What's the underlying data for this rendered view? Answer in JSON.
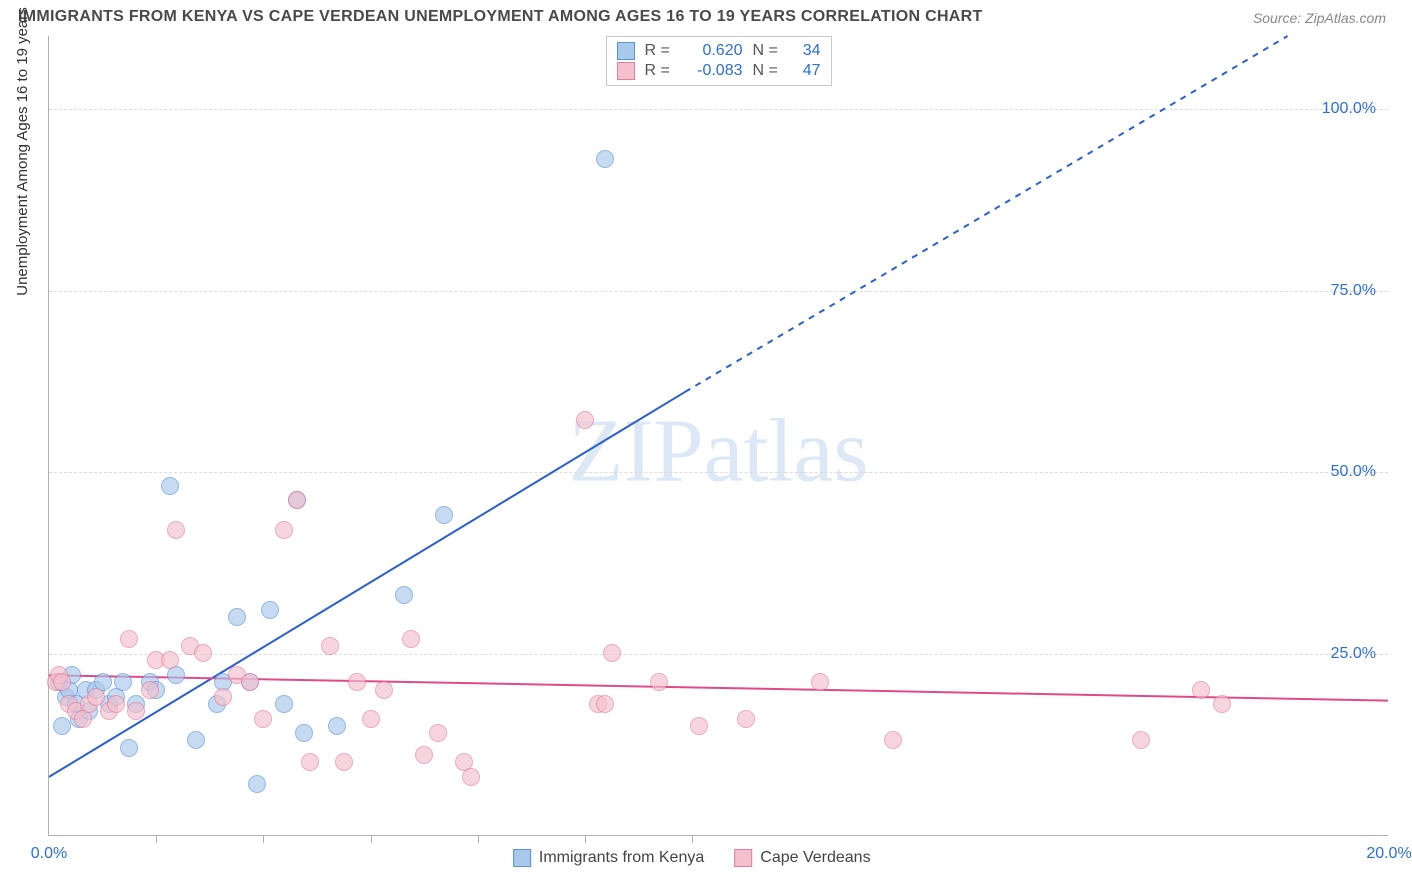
{
  "title": "IMMIGRANTS FROM KENYA VS CAPE VERDEAN UNEMPLOYMENT AMONG AGES 16 TO 19 YEARS CORRELATION CHART",
  "source": "Source: ZipAtlas.com",
  "watermark": "ZIPatlas",
  "chart": {
    "type": "scatter",
    "xlim": [
      0,
      20
    ],
    "ylim": [
      0,
      110
    ],
    "xticks": [
      0,
      20
    ],
    "xtick_labels": [
      "0.0%",
      "20.0%"
    ],
    "yticks": [
      25,
      50,
      75,
      100
    ],
    "ytick_labels": [
      "25.0%",
      "50.0%",
      "75.0%",
      "100.0%"
    ],
    "minor_vticks": [
      1.6,
      3.2,
      4.8,
      6.4,
      8.0,
      9.6
    ],
    "ylabel": "Unemployment Among Ages 16 to 19 years",
    "background_color": "#ffffff",
    "grid_color": "#dcdcdc",
    "point_radius": 9,
    "series": [
      {
        "name": "Immigrants from Kenya",
        "fill": "#a8c8ec",
        "stroke": "#5893d4",
        "fill_opacity": 0.65,
        "R": "0.620",
        "N": "34",
        "trend": {
          "x1": 0,
          "y1": 8,
          "x2": 9.5,
          "y2": 61,
          "x2_ext": 18.5,
          "y2_ext": 110,
          "color": "#2a5fd0",
          "width": 2
        },
        "points": [
          [
            0.15,
            21
          ],
          [
            0.2,
            15
          ],
          [
            0.25,
            19
          ],
          [
            0.3,
            20
          ],
          [
            0.35,
            22
          ],
          [
            0.4,
            18
          ],
          [
            0.45,
            16
          ],
          [
            0.55,
            20
          ],
          [
            0.6,
            17
          ],
          [
            0.7,
            20
          ],
          [
            0.8,
            21
          ],
          [
            0.9,
            18
          ],
          [
            1.0,
            19
          ],
          [
            1.1,
            21
          ],
          [
            1.2,
            12
          ],
          [
            1.3,
            18
          ],
          [
            1.5,
            21
          ],
          [
            1.6,
            20
          ],
          [
            1.8,
            48
          ],
          [
            1.9,
            22
          ],
          [
            2.2,
            13
          ],
          [
            2.5,
            18
          ],
          [
            2.6,
            21
          ],
          [
            2.8,
            30
          ],
          [
            3.0,
            21
          ],
          [
            3.1,
            7
          ],
          [
            3.3,
            31
          ],
          [
            3.5,
            18
          ],
          [
            3.7,
            46
          ],
          [
            3.8,
            14
          ],
          [
            4.3,
            15
          ],
          [
            5.3,
            33
          ],
          [
            5.9,
            44
          ],
          [
            8.3,
            93
          ]
        ]
      },
      {
        "name": "Cape Verdeans",
        "fill": "#f4c0cd",
        "stroke": "#e77ba0",
        "fill_opacity": 0.65,
        "R": "-0.083",
        "N": "47",
        "trend": {
          "x1": 0,
          "y1": 22,
          "x2": 20,
          "y2": 18.5,
          "color": "#e04a88",
          "width": 2
        },
        "points": [
          [
            0.1,
            21
          ],
          [
            0.15,
            22
          ],
          [
            0.2,
            21
          ],
          [
            0.3,
            18
          ],
          [
            0.4,
            17
          ],
          [
            0.5,
            16
          ],
          [
            0.6,
            18
          ],
          [
            0.7,
            19
          ],
          [
            0.9,
            17
          ],
          [
            1.0,
            18
          ],
          [
            1.2,
            27
          ],
          [
            1.3,
            17
          ],
          [
            1.5,
            20
          ],
          [
            1.6,
            24
          ],
          [
            1.8,
            24
          ],
          [
            1.9,
            42
          ],
          [
            2.1,
            26
          ],
          [
            2.3,
            25
          ],
          [
            2.6,
            19
          ],
          [
            2.8,
            22
          ],
          [
            3.0,
            21
          ],
          [
            3.2,
            16
          ],
          [
            3.5,
            42
          ],
          [
            3.7,
            46
          ],
          [
            3.9,
            10
          ],
          [
            4.2,
            26
          ],
          [
            4.4,
            10
          ],
          [
            4.6,
            21
          ],
          [
            4.8,
            16
          ],
          [
            5.0,
            20
          ],
          [
            5.4,
            27
          ],
          [
            5.6,
            11
          ],
          [
            5.8,
            14
          ],
          [
            6.2,
            10
          ],
          [
            6.3,
            8
          ],
          [
            8.0,
            57
          ],
          [
            8.2,
            18
          ],
          [
            8.3,
            18
          ],
          [
            8.4,
            25
          ],
          [
            9.1,
            21
          ],
          [
            9.7,
            15
          ],
          [
            10.4,
            16
          ],
          [
            11.5,
            21
          ],
          [
            12.6,
            13
          ],
          [
            16.3,
            13
          ],
          [
            17.2,
            20
          ],
          [
            17.5,
            18
          ]
        ]
      }
    ]
  }
}
